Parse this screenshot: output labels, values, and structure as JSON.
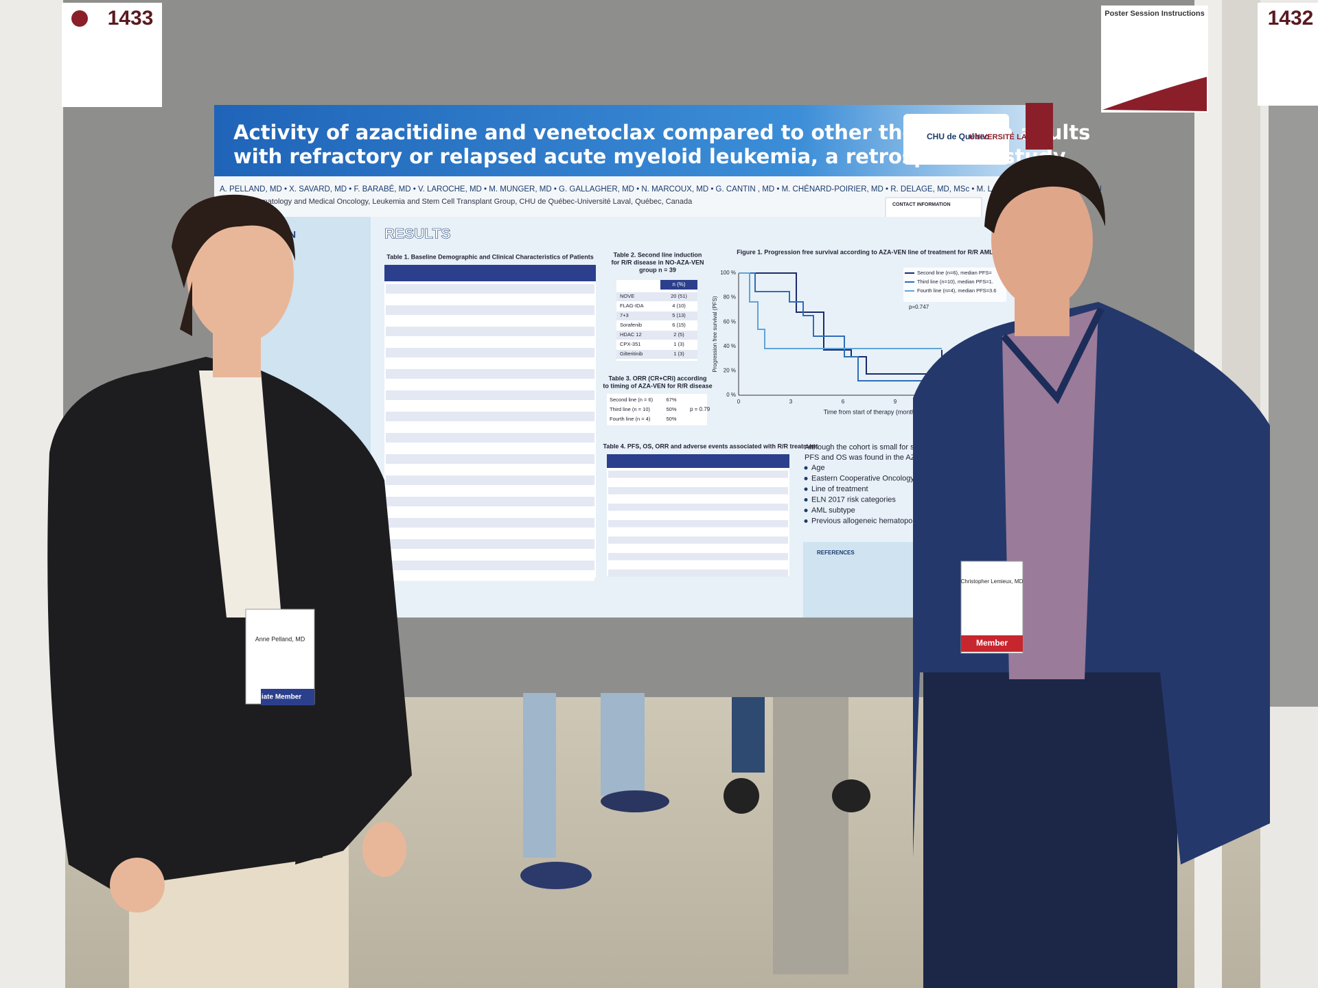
{
  "board": {
    "number_left": "1433",
    "number_right": "1432",
    "instructions_title": "Poster Session Instructions"
  },
  "poster": {
    "title_line1": "Activity of azacitidine and venetoclax compared to other therapies in adults",
    "title_line2": "with refractory or relapsed acute myeloid leukemia, a retrospective study",
    "logo_chu": "CHU de Québec",
    "logo_ul": "UNIVERSITÉ LAVAL",
    "authors": "A. PELLAND, MD • X. SAVARD, MD • F. BARABÉ, MD • V. LAROCHE, MD • M. MUNGER, MD • G. GALLAGHER, MD • N. MARCOUX, MD • G. CANTIN , MD • M. CHÉNARD-POIRIER, MD • R. DELAGE, MD, MSc • M. LALANCETTE, MD • C. LEMIEU",
    "affiliation": "rtment of Hematology and Medical Oncology, Leukemia and Stem Cell Transplant Group, CHU de Québec-Université Laval, Québec, Canada",
    "contact": "CONTACT INFORMATION",
    "intro_heading": "ON",
    "results_heading": "RESULTS",
    "table1_caption": "Table 1. Baseline Demographic and Clinical Characteristics of Patients",
    "table2_caption": [
      "Table 2. Second line induction",
      "for R/R disease in NO-AZA-VEN",
      "group n = 39"
    ],
    "table2_header": "n (%)",
    "table2_rows": [
      [
        "NOVE",
        "20 (51)"
      ],
      [
        "FLAG-IDA",
        "4 (10)"
      ],
      [
        "7+3",
        "5 (13)"
      ],
      [
        "Sorafenib",
        "6 (15)"
      ],
      [
        "HDAC 12",
        "2 (5)"
      ],
      [
        "CPX-351",
        "1 (3)"
      ],
      [
        "Gilteritinib",
        "1 (3)"
      ]
    ],
    "table3_caption": [
      "Table 3. ORR (CR+CRi) according",
      "to timing of AZA-VEN for R/R disease"
    ],
    "table3_rows": [
      [
        "Second line (n = 6)",
        "67%"
      ],
      [
        "Third line (n = 10)",
        "50%"
      ],
      [
        "Fourth line (n = 4)",
        "50%"
      ]
    ],
    "table3_p": "p = 0.79",
    "table4_caption": "Table 4. PFS, OS, ORR and adverse events associated with R/R treatment",
    "figure1_caption": "Figure 1. Progression free survival according to AZA-VEN line of treatment for R/R AML",
    "figure1_yticks": [
      "100 %",
      "80 %",
      "60 %",
      "40 %",
      "20 %",
      "0 %"
    ],
    "figure1_xticks": [
      "0",
      "3",
      "6",
      "9"
    ],
    "figure1_xlabel": "Time from start of therapy (months)",
    "figure1_ylabel": "Progression free survival (PFS)",
    "figure1_legend": [
      "Second line (n=6), median PFS=",
      "Third line (n=10), median PFS=1.",
      "Fourth line (n=4), median PFS=3.6"
    ],
    "figure1_p": "p=0.747",
    "conclusion_intro": [
      "Although the cohort is small for subgro",
      "PFS and OS was found in the AZA-VEN"
    ],
    "conclusion_items": [
      "Age",
      "Eastern Cooperative Oncology Group",
      "Line of treatment",
      "ELN 2017 risk categories",
      "AML subtype",
      "Previous allogeneic hematopoietic ste"
    ],
    "references_heading": "REFERENCES"
  },
  "badges": {
    "left_name": "Anne Pelland, MD",
    "left_type": "iate Member",
    "right_name": "Christopher Lemieux, MD",
    "right_type": "Member"
  }
}
